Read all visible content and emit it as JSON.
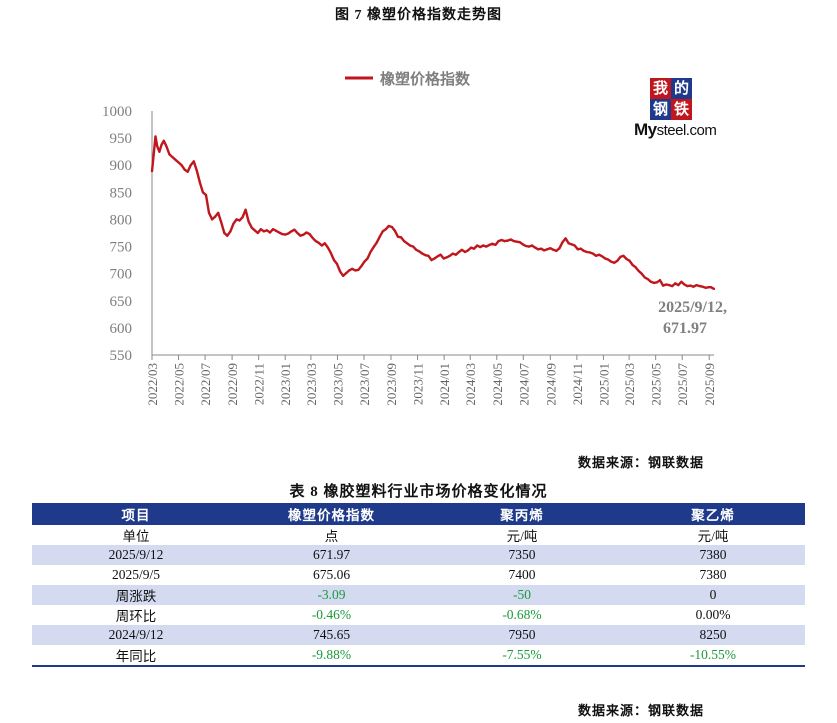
{
  "figure_title": "图 7    橡塑价格指数走势图",
  "logo": {
    "tiles": [
      "我",
      "的",
      "钢",
      "铁"
    ],
    "brand_bold": "My",
    "brand_rest": "steel.com"
  },
  "chart_data": {
    "type": "line",
    "series": [
      {
        "name": "橡塑价格指数",
        "color": "#c0161d",
        "points": [
          [
            "2022-03-01",
            889
          ],
          [
            "2022-03-05",
            920
          ],
          [
            "2022-03-09",
            953
          ],
          [
            "2022-03-13",
            935
          ],
          [
            "2022-03-18",
            925
          ],
          [
            "2022-03-23",
            938
          ],
          [
            "2022-03-28",
            945
          ],
          [
            "2022-04-03",
            935
          ],
          [
            "2022-04-10",
            920
          ],
          [
            "2022-04-17",
            915
          ],
          [
            "2022-04-24",
            910
          ],
          [
            "2022-05-01",
            905
          ],
          [
            "2022-05-08",
            900
          ],
          [
            "2022-05-15",
            892
          ],
          [
            "2022-05-22",
            888
          ],
          [
            "2022-05-29",
            900
          ],
          [
            "2022-06-05",
            907
          ],
          [
            "2022-06-12",
            890
          ],
          [
            "2022-06-19",
            868
          ],
          [
            "2022-06-26",
            850
          ],
          [
            "2022-07-03",
            845
          ],
          [
            "2022-07-10",
            812
          ],
          [
            "2022-07-17",
            800
          ],
          [
            "2022-07-24",
            805
          ],
          [
            "2022-07-31",
            812
          ],
          [
            "2022-08-07",
            795
          ],
          [
            "2022-08-14",
            775
          ],
          [
            "2022-08-21",
            770
          ],
          [
            "2022-08-28",
            778
          ],
          [
            "2022-09-04",
            792
          ],
          [
            "2022-09-11",
            800
          ],
          [
            "2022-09-18",
            798
          ],
          [
            "2022-09-25",
            804
          ],
          [
            "2022-10-02",
            818
          ],
          [
            "2022-10-09",
            796
          ],
          [
            "2022-10-16",
            785
          ],
          [
            "2022-10-23",
            780
          ],
          [
            "2022-10-30",
            775
          ],
          [
            "2022-11-06",
            782
          ],
          [
            "2022-11-13",
            778
          ],
          [
            "2022-11-20",
            780
          ],
          [
            "2022-11-27",
            776
          ],
          [
            "2022-12-04",
            782
          ],
          [
            "2022-12-11",
            779
          ],
          [
            "2022-12-18",
            776
          ],
          [
            "2022-12-25",
            773
          ],
          [
            "2023-01-01",
            772
          ],
          [
            "2023-01-08",
            774
          ],
          [
            "2023-01-15",
            778
          ],
          [
            "2023-01-22",
            781
          ],
          [
            "2023-01-29",
            775
          ],
          [
            "2023-02-05",
            770
          ],
          [
            "2023-02-12",
            772
          ],
          [
            "2023-02-19",
            776
          ],
          [
            "2023-02-26",
            773
          ],
          [
            "2023-03-05",
            766
          ],
          [
            "2023-03-12",
            760
          ],
          [
            "2023-03-19",
            757
          ],
          [
            "2023-03-26",
            752
          ],
          [
            "2023-04-02",
            756
          ],
          [
            "2023-04-09",
            748
          ],
          [
            "2023-04-16",
            738
          ],
          [
            "2023-04-23",
            725
          ],
          [
            "2023-04-30",
            718
          ],
          [
            "2023-05-07",
            704
          ],
          [
            "2023-05-14",
            696
          ],
          [
            "2023-05-21",
            701
          ],
          [
            "2023-05-28",
            706
          ],
          [
            "2023-06-04",
            709
          ],
          [
            "2023-06-11",
            706
          ],
          [
            "2023-06-18",
            707
          ],
          [
            "2023-06-25",
            714
          ],
          [
            "2023-07-02",
            722
          ],
          [
            "2023-07-09",
            728
          ],
          [
            "2023-07-16",
            740
          ],
          [
            "2023-07-23",
            749
          ],
          [
            "2023-07-30",
            757
          ],
          [
            "2023-08-06",
            768
          ],
          [
            "2023-08-13",
            778
          ],
          [
            "2023-08-20",
            782
          ],
          [
            "2023-08-27",
            788
          ],
          [
            "2023-09-03",
            786
          ],
          [
            "2023-09-10",
            779
          ],
          [
            "2023-09-17",
            768
          ],
          [
            "2023-09-24",
            767
          ],
          [
            "2023-10-01",
            760
          ],
          [
            "2023-10-08",
            756
          ],
          [
            "2023-10-15",
            752
          ],
          [
            "2023-10-22",
            750
          ],
          [
            "2023-10-29",
            744
          ],
          [
            "2023-11-05",
            741
          ],
          [
            "2023-11-12",
            737
          ],
          [
            "2023-11-19",
            734
          ],
          [
            "2023-11-26",
            733
          ],
          [
            "2023-12-03",
            725
          ],
          [
            "2023-12-10",
            728
          ],
          [
            "2023-12-17",
            732
          ],
          [
            "2023-12-24",
            735
          ],
          [
            "2023-12-31",
            728
          ],
          [
            "2024-01-07",
            730
          ],
          [
            "2024-01-14",
            733
          ],
          [
            "2024-01-21",
            737
          ],
          [
            "2024-01-28",
            735
          ],
          [
            "2024-02-04",
            740
          ],
          [
            "2024-02-11",
            744
          ],
          [
            "2024-02-18",
            740
          ],
          [
            "2024-02-25",
            743
          ],
          [
            "2024-03-03",
            748
          ],
          [
            "2024-03-10",
            746
          ],
          [
            "2024-03-17",
            752
          ],
          [
            "2024-03-24",
            749
          ],
          [
            "2024-03-31",
            752
          ],
          [
            "2024-04-07",
            750
          ],
          [
            "2024-04-14",
            753
          ],
          [
            "2024-04-21",
            755
          ],
          [
            "2024-04-28",
            753
          ],
          [
            "2024-05-05",
            760
          ],
          [
            "2024-05-12",
            762
          ],
          [
            "2024-05-19",
            760
          ],
          [
            "2024-05-26",
            761
          ],
          [
            "2024-06-02",
            763
          ],
          [
            "2024-06-09",
            760
          ],
          [
            "2024-06-16",
            759
          ],
          [
            "2024-06-23",
            758
          ],
          [
            "2024-06-30",
            754
          ],
          [
            "2024-07-07",
            751
          ],
          [
            "2024-07-14",
            750
          ],
          [
            "2024-07-21",
            752
          ],
          [
            "2024-07-28",
            748
          ],
          [
            "2024-08-04",
            745
          ],
          [
            "2024-08-11",
            746
          ],
          [
            "2024-08-18",
            743
          ],
          [
            "2024-08-25",
            745
          ],
          [
            "2024-09-01",
            747
          ],
          [
            "2024-09-08",
            744
          ],
          [
            "2024-09-15",
            742
          ],
          [
            "2024-09-22",
            747
          ],
          [
            "2024-09-29",
            758
          ],
          [
            "2024-10-06",
            765
          ],
          [
            "2024-10-13",
            756
          ],
          [
            "2024-10-20",
            754
          ],
          [
            "2024-10-27",
            752
          ],
          [
            "2024-11-03",
            745
          ],
          [
            "2024-11-10",
            746
          ],
          [
            "2024-11-17",
            742
          ],
          [
            "2024-11-24",
            740
          ],
          [
            "2024-12-01",
            739
          ],
          [
            "2024-12-08",
            737
          ],
          [
            "2024-12-15",
            733
          ],
          [
            "2024-12-22",
            735
          ],
          [
            "2024-12-29",
            732
          ],
          [
            "2025-01-05",
            728
          ],
          [
            "2025-01-12",
            726
          ],
          [
            "2025-01-19",
            722
          ],
          [
            "2025-01-26",
            720
          ],
          [
            "2025-02-02",
            724
          ],
          [
            "2025-02-09",
            731
          ],
          [
            "2025-02-16",
            733
          ],
          [
            "2025-02-23",
            727
          ],
          [
            "2025-03-02",
            724
          ],
          [
            "2025-03-09",
            716
          ],
          [
            "2025-03-16",
            712
          ],
          [
            "2025-03-23",
            705
          ],
          [
            "2025-03-30",
            700
          ],
          [
            "2025-04-06",
            693
          ],
          [
            "2025-04-13",
            690
          ],
          [
            "2025-04-20",
            685
          ],
          [
            "2025-04-27",
            683
          ],
          [
            "2025-05-04",
            684
          ],
          [
            "2025-05-11",
            688
          ],
          [
            "2025-05-18",
            678
          ],
          [
            "2025-05-25",
            680
          ],
          [
            "2025-06-01",
            679
          ],
          [
            "2025-06-08",
            677
          ],
          [
            "2025-06-15",
            682
          ],
          [
            "2025-06-22",
            679
          ],
          [
            "2025-06-29",
            685
          ],
          [
            "2025-07-06",
            680
          ],
          [
            "2025-07-13",
            677
          ],
          [
            "2025-07-20",
            678
          ],
          [
            "2025-07-27",
            676
          ],
          [
            "2025-08-03",
            679
          ],
          [
            "2025-08-10",
            677
          ],
          [
            "2025-08-17",
            676
          ],
          [
            "2025-08-24",
            674
          ],
          [
            "2025-08-31",
            675
          ],
          [
            "2025-09-05",
            675.06
          ],
          [
            "2025-09-12",
            671.97
          ]
        ]
      }
    ],
    "ylim": [
      550,
      1000
    ],
    "yticks": [
      550,
      600,
      650,
      700,
      750,
      800,
      850,
      900,
      950,
      1000
    ],
    "xlim": [
      "2022-03-01",
      "2025-09-12"
    ],
    "xticks": [
      "2022/03",
      "2022/05",
      "2022/07",
      "2022/09",
      "2022/11",
      "2023/01",
      "2023/03",
      "2023/05",
      "2023/07",
      "2023/09",
      "2023/11",
      "2024/01",
      "2024/03",
      "2024/05",
      "2024/07",
      "2024/09",
      "2024/11",
      "2025/01",
      "2025/03",
      "2025/05",
      "2025/07",
      "2025/09"
    ],
    "legend": "top-center",
    "annotation": {
      "line1": "2025/9/12,",
      "line2": "671.97"
    },
    "grid": false
  },
  "chart_source": "数据来源：钢联数据",
  "table": {
    "title": "表 8 橡胶塑料行业市场价格变化情况",
    "headers": [
      "项目",
      "橡塑价格指数",
      "聚丙烯",
      "聚乙烯"
    ],
    "rows": [
      {
        "cells": [
          "单位",
          "点",
          "元/吨",
          "元/吨"
        ],
        "neg": [
          false,
          false,
          false
        ]
      },
      {
        "cells": [
          "2025/9/12",
          "671.97",
          "7350",
          "7380"
        ],
        "neg": [
          false,
          false,
          false
        ]
      },
      {
        "cells": [
          "2025/9/5",
          "675.06",
          "7400",
          "7380"
        ],
        "neg": [
          false,
          false,
          false
        ]
      },
      {
        "cells": [
          "周涨跌",
          "-3.09",
          "-50",
          "0"
        ],
        "neg": [
          true,
          true,
          true
        ]
      },
      {
        "cells": [
          "周环比",
          "-0.46%",
          "-0.68%",
          "0.00%"
        ],
        "neg": [
          true,
          true,
          true
        ]
      },
      {
        "cells": [
          "2024/9/12",
          "745.65",
          "7950",
          "8250"
        ],
        "neg": [
          false,
          false,
          false
        ]
      },
      {
        "cells": [
          "年同比",
          "-9.88%",
          "-7.55%",
          "-10.55%"
        ],
        "neg": [
          true,
          true,
          true
        ]
      }
    ]
  },
  "table_source": "数据来源：钢联数据",
  "colors": {
    "accent": "#1f3a8a",
    "line": "#c0161d",
    "negative": "#1a9a3a",
    "shade": "#d4dbf1"
  }
}
